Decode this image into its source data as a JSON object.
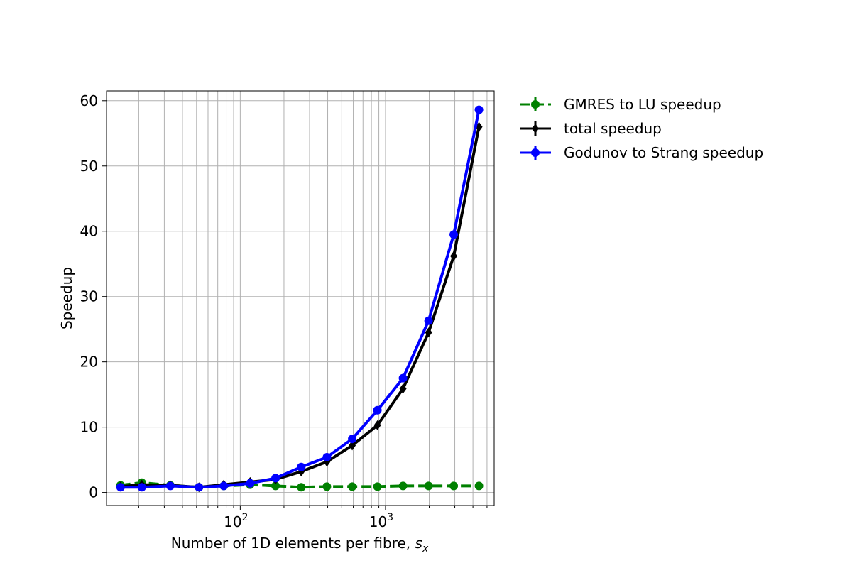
{
  "chart_data": {
    "type": "line",
    "xlabel": "Number of 1D elements per fibre, ",
    "xlabel_symbol": "s",
    "xlabel_subscript": "x",
    "ylabel": "Speedup",
    "xscale": "log",
    "xlim": [
      12,
      5600
    ],
    "ylim": [
      -2,
      61.5
    ],
    "yticks": [
      "0",
      "10",
      "20",
      "30",
      "40",
      "50",
      "60"
    ],
    "xticks": [
      {
        "base": "10",
        "exp": "2",
        "value": 100
      },
      {
        "base": "10",
        "exp": "3",
        "value": 1000
      }
    ],
    "grid": true,
    "legend_position": "outside-top-right",
    "x": [
      15,
      21,
      33,
      52,
      77,
      117,
      175,
      263,
      395,
      590,
      880,
      1320,
      1980,
      2950,
      4400
    ],
    "series": [
      {
        "name": "GMRES to LU speedup",
        "color": "#008000",
        "linestyle": "dashed",
        "marker": "circle",
        "values": [
          1.1,
          1.5,
          1.1,
          0.8,
          1.0,
          1.2,
          1.0,
          0.8,
          0.9,
          0.9,
          0.9,
          1.0,
          1.0,
          1.0,
          1.0
        ]
      },
      {
        "name": "total speedup",
        "color": "#000000",
        "linestyle": "solid",
        "marker": "diamond",
        "values": [
          0.9,
          1.2,
          1.1,
          0.8,
          1.2,
          1.6,
          2.0,
          3.2,
          4.7,
          7.2,
          10.3,
          15.9,
          24.5,
          36.2,
          56.0
        ]
      },
      {
        "name": "Godunov to Strang speedup",
        "color": "#0000ff",
        "linestyle": "solid",
        "marker": "circle",
        "values": [
          0.8,
          0.8,
          1.0,
          0.8,
          1.0,
          1.4,
          2.2,
          3.9,
          5.4,
          8.2,
          12.6,
          17.5,
          26.3,
          39.5,
          58.6
        ]
      }
    ]
  }
}
